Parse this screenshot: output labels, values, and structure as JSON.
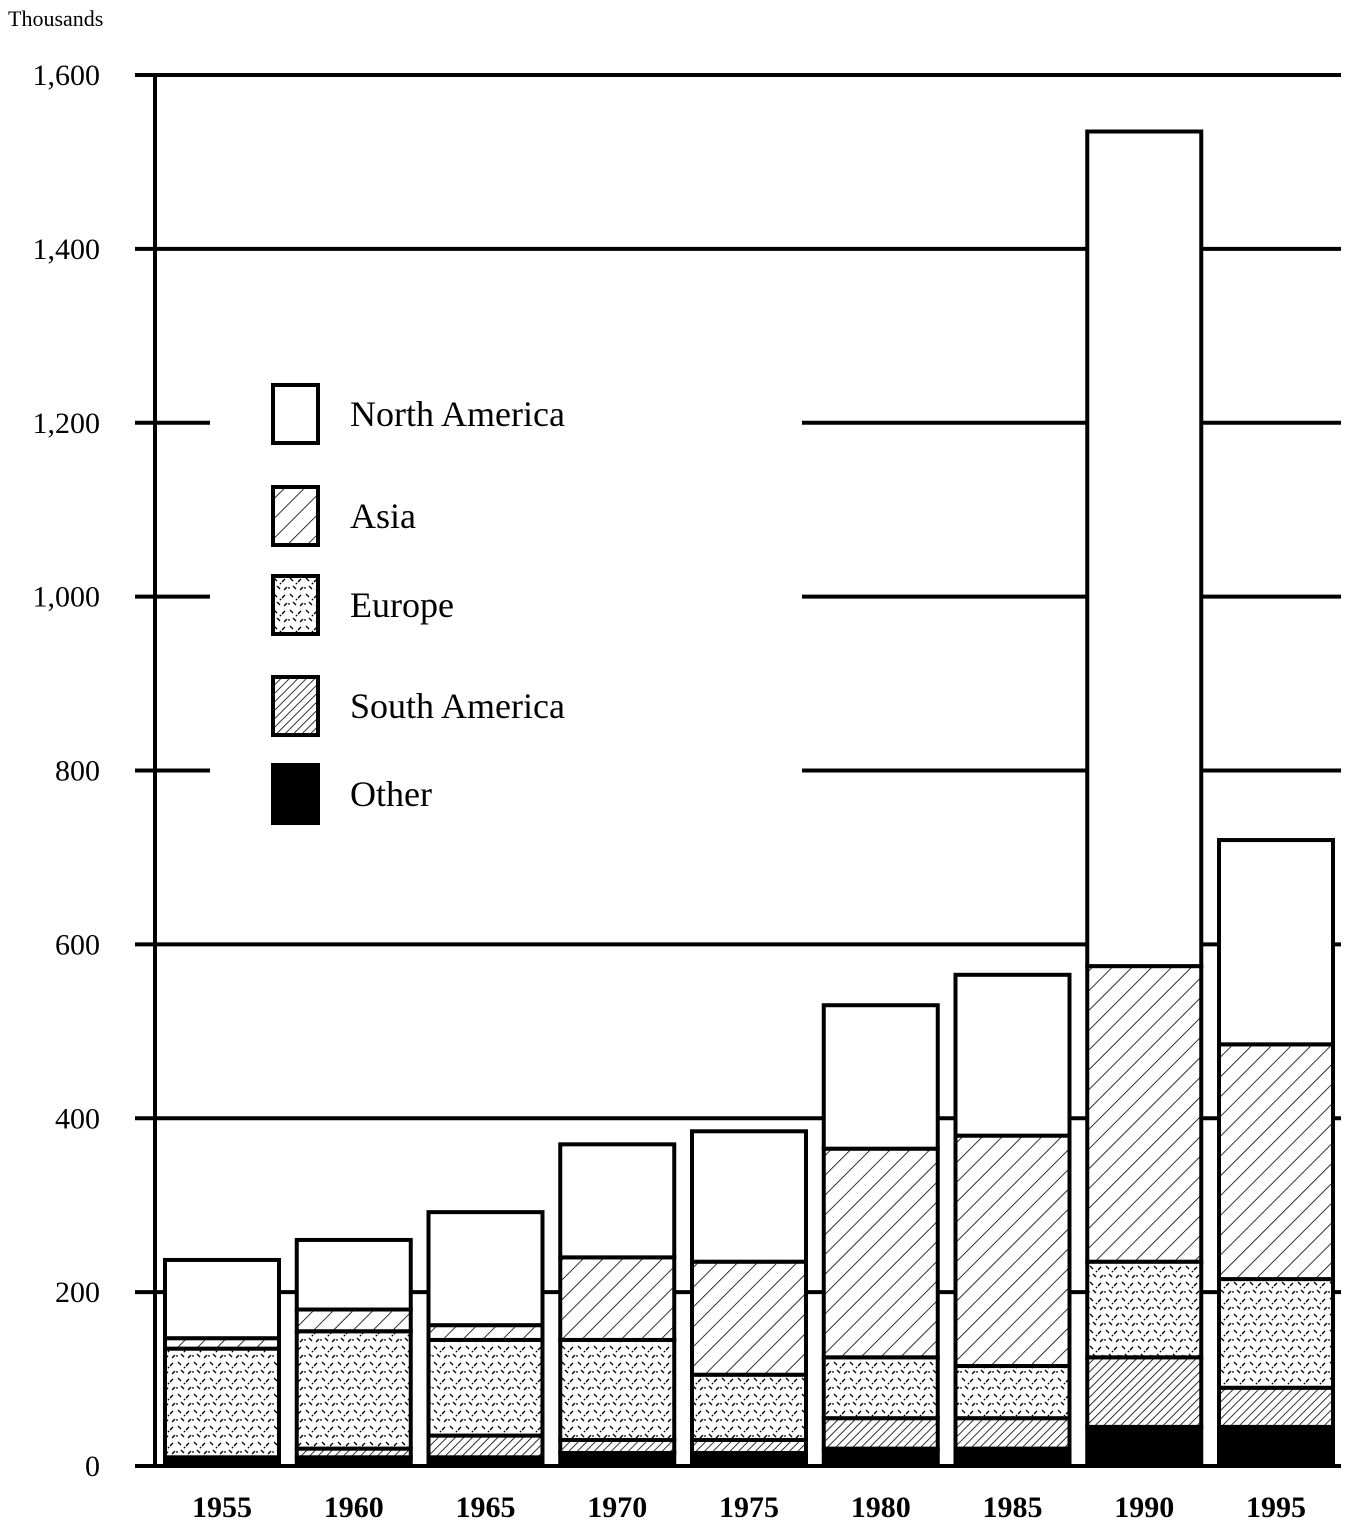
{
  "chart_data": {
    "type": "bar",
    "stacked": true,
    "title": "",
    "xlabel": "",
    "ylabel": "Thousands",
    "ylim": [
      0,
      1600
    ],
    "yticks": [
      0,
      200,
      400,
      600,
      800,
      1000,
      1200,
      1400,
      1600
    ],
    "ytick_labels": [
      "0",
      "200",
      "400",
      "600",
      "800",
      "1,000",
      "1,200",
      "1,400",
      "1,600"
    ],
    "categories": [
      "1955",
      "1960",
      "1965",
      "1970",
      "1975",
      "1980",
      "1985",
      "1990",
      "1995"
    ],
    "grid": true,
    "legend_position": "upper-left",
    "series": [
      {
        "name": "Other",
        "pattern": "solid-black",
        "values": [
          10,
          10,
          10,
          15,
          15,
          20,
          20,
          45,
          45
        ]
      },
      {
        "name": "South America",
        "pattern": "dense-hatch",
        "values": [
          0,
          10,
          25,
          15,
          15,
          35,
          35,
          80,
          45
        ]
      },
      {
        "name": "Europe",
        "pattern": "dotted-dash",
        "values": [
          125,
          135,
          110,
          115,
          75,
          70,
          60,
          110,
          125
        ]
      },
      {
        "name": "Asia",
        "pattern": "diagonal-hatch",
        "values": [
          12,
          25,
          17,
          95,
          130,
          240,
          265,
          340,
          270
        ]
      },
      {
        "name": "North America",
        "pattern": "white",
        "values": [
          90,
          80,
          130,
          130,
          150,
          165,
          185,
          960,
          235
        ]
      }
    ],
    "legend_order": [
      "North America",
      "Asia",
      "Europe",
      "South America",
      "Other"
    ]
  }
}
